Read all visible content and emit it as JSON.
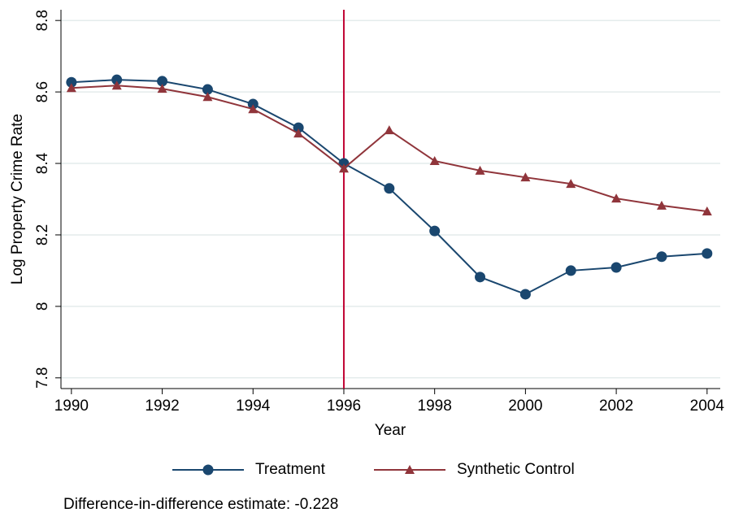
{
  "chart_data": {
    "type": "line",
    "x": [
      1990,
      1991,
      1992,
      1993,
      1994,
      1995,
      1996,
      1997,
      1998,
      1999,
      2000,
      2001,
      2002,
      2003,
      2004
    ],
    "series": [
      {
        "name": "Treatment",
        "color": "#1a476f",
        "marker": "circle",
        "values": [
          8.627,
          8.634,
          8.63,
          8.607,
          8.566,
          8.5,
          8.4,
          8.33,
          8.211,
          8.082,
          8.034,
          8.1,
          8.109,
          8.139,
          8.148
        ]
      },
      {
        "name": "Synthetic Control",
        "color": "#90353b",
        "marker": "triangle",
        "values": [
          8.611,
          8.618,
          8.609,
          8.586,
          8.552,
          8.484,
          8.386,
          8.493,
          8.407,
          8.38,
          8.361,
          8.343,
          8.302,
          8.282,
          8.266
        ]
      }
    ],
    "xlabel": "Year",
    "ylabel": "Log Property Crime Rate",
    "xlim": [
      1989.77,
      2004.29
    ],
    "ylim": [
      7.77,
      8.83
    ],
    "xticks": [
      1990,
      1992,
      1994,
      1996,
      1998,
      2000,
      2002,
      2004
    ],
    "yticks": [
      {
        "value": 7.8,
        "label": "7.8"
      },
      8,
      8.2,
      8.4,
      8.6,
      {
        "value": 8.8,
        "label": "8.8"
      }
    ],
    "grid": true,
    "vline": {
      "x": 1996,
      "color": "#c10534"
    },
    "legend": "bottom",
    "note": "Difference-in-difference estimate: -0.228"
  }
}
